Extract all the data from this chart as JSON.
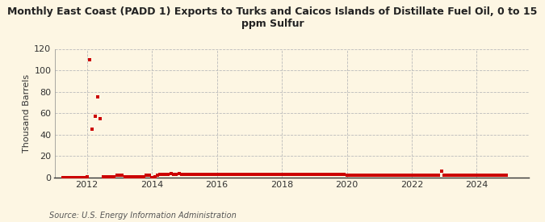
{
  "title": "Monthly East Coast (PADD 1) Exports to Turks and Caicos Islands of Distillate Fuel Oil, 0 to 15\nppm Sulfur",
  "ylabel": "Thousand Barrels",
  "source": "Source: U.S. Energy Information Administration",
  "background_color": "#fdf6e3",
  "plot_bg_color": "#fdf6e3",
  "marker_color": "#cc0000",
  "grid_color": "#bbbbbb",
  "ylim": [
    0,
    120
  ],
  "yticks": [
    0,
    20,
    40,
    60,
    80,
    100,
    120
  ],
  "xlim_start": 2011.0,
  "xlim_end": 2025.6,
  "xticks": [
    2012,
    2014,
    2016,
    2018,
    2020,
    2022,
    2024
  ],
  "data_points": [
    [
      2011.25,
      0
    ],
    [
      2011.33,
      0
    ],
    [
      2011.42,
      0
    ],
    [
      2011.5,
      0
    ],
    [
      2011.58,
      0
    ],
    [
      2011.67,
      0
    ],
    [
      2011.75,
      0
    ],
    [
      2011.83,
      0
    ],
    [
      2011.92,
      0
    ],
    [
      2012.0,
      1
    ],
    [
      2012.083,
      110
    ],
    [
      2012.167,
      45
    ],
    [
      2012.25,
      57
    ],
    [
      2012.333,
      75
    ],
    [
      2012.417,
      55
    ],
    [
      2012.5,
      1
    ],
    [
      2012.583,
      1
    ],
    [
      2012.667,
      1
    ],
    [
      2012.75,
      1
    ],
    [
      2012.833,
      1
    ],
    [
      2012.917,
      2
    ],
    [
      2013.0,
      2
    ],
    [
      2013.083,
      2
    ],
    [
      2013.167,
      1
    ],
    [
      2013.25,
      1
    ],
    [
      2013.333,
      1
    ],
    [
      2013.417,
      1
    ],
    [
      2013.5,
      1
    ],
    [
      2013.583,
      1
    ],
    [
      2013.667,
      1
    ],
    [
      2013.75,
      1
    ],
    [
      2013.833,
      2
    ],
    [
      2013.917,
      2
    ],
    [
      2014.0,
      0
    ],
    [
      2014.083,
      1
    ],
    [
      2014.167,
      2
    ],
    [
      2014.25,
      3
    ],
    [
      2014.333,
      3
    ],
    [
      2014.417,
      3
    ],
    [
      2014.5,
      3
    ],
    [
      2014.583,
      4
    ],
    [
      2014.667,
      3
    ],
    [
      2014.75,
      3
    ],
    [
      2014.833,
      4
    ],
    [
      2014.917,
      3
    ],
    [
      2015.0,
      3
    ],
    [
      2015.083,
      3
    ],
    [
      2015.167,
      3
    ],
    [
      2015.25,
      3
    ],
    [
      2015.333,
      3
    ],
    [
      2015.417,
      3
    ],
    [
      2015.5,
      3
    ],
    [
      2015.583,
      3
    ],
    [
      2015.667,
      3
    ],
    [
      2015.75,
      3
    ],
    [
      2015.833,
      3
    ],
    [
      2015.917,
      3
    ],
    [
      2016.0,
      3
    ],
    [
      2016.083,
      3
    ],
    [
      2016.167,
      3
    ],
    [
      2016.25,
      3
    ],
    [
      2016.333,
      3
    ],
    [
      2016.417,
      3
    ],
    [
      2016.5,
      3
    ],
    [
      2016.583,
      3
    ],
    [
      2016.667,
      3
    ],
    [
      2016.75,
      3
    ],
    [
      2016.833,
      3
    ],
    [
      2016.917,
      3
    ],
    [
      2017.0,
      3
    ],
    [
      2017.083,
      3
    ],
    [
      2017.167,
      3
    ],
    [
      2017.25,
      3
    ],
    [
      2017.333,
      3
    ],
    [
      2017.417,
      3
    ],
    [
      2017.5,
      3
    ],
    [
      2017.583,
      3
    ],
    [
      2017.667,
      3
    ],
    [
      2017.75,
      3
    ],
    [
      2017.833,
      3
    ],
    [
      2017.917,
      3
    ],
    [
      2018.0,
      3
    ],
    [
      2018.083,
      3
    ],
    [
      2018.167,
      3
    ],
    [
      2018.25,
      3
    ],
    [
      2018.333,
      3
    ],
    [
      2018.417,
      3
    ],
    [
      2018.5,
      3
    ],
    [
      2018.583,
      3
    ],
    [
      2018.667,
      3
    ],
    [
      2018.75,
      3
    ],
    [
      2018.833,
      3
    ],
    [
      2018.917,
      3
    ],
    [
      2019.0,
      3
    ],
    [
      2019.083,
      3
    ],
    [
      2019.167,
      3
    ],
    [
      2019.25,
      3
    ],
    [
      2019.333,
      3
    ],
    [
      2019.417,
      3
    ],
    [
      2019.5,
      3
    ],
    [
      2019.583,
      3
    ],
    [
      2019.667,
      3
    ],
    [
      2019.75,
      3
    ],
    [
      2019.833,
      3
    ],
    [
      2019.917,
      3
    ],
    [
      2020.0,
      2
    ],
    [
      2020.083,
      2
    ],
    [
      2020.167,
      2
    ],
    [
      2020.25,
      2
    ],
    [
      2020.333,
      2
    ],
    [
      2020.417,
      2
    ],
    [
      2020.5,
      2
    ],
    [
      2020.583,
      2
    ],
    [
      2020.667,
      2
    ],
    [
      2020.75,
      2
    ],
    [
      2020.833,
      2
    ],
    [
      2020.917,
      2
    ],
    [
      2021.0,
      2
    ],
    [
      2021.083,
      2
    ],
    [
      2021.167,
      2
    ],
    [
      2021.25,
      2
    ],
    [
      2021.333,
      2
    ],
    [
      2021.417,
      2
    ],
    [
      2021.5,
      2
    ],
    [
      2021.583,
      2
    ],
    [
      2021.667,
      2
    ],
    [
      2021.75,
      2
    ],
    [
      2021.833,
      2
    ],
    [
      2021.917,
      2
    ],
    [
      2022.0,
      2
    ],
    [
      2022.083,
      2
    ],
    [
      2022.167,
      2
    ],
    [
      2022.25,
      2
    ],
    [
      2022.333,
      2
    ],
    [
      2022.417,
      2
    ],
    [
      2022.5,
      2
    ],
    [
      2022.583,
      2
    ],
    [
      2022.667,
      2
    ],
    [
      2022.75,
      2
    ],
    [
      2022.833,
      2
    ],
    [
      2022.917,
      6
    ],
    [
      2023.0,
      2
    ],
    [
      2023.083,
      2
    ],
    [
      2023.167,
      2
    ],
    [
      2023.25,
      2
    ],
    [
      2023.333,
      2
    ],
    [
      2023.417,
      2
    ],
    [
      2023.5,
      2
    ],
    [
      2023.583,
      2
    ],
    [
      2023.667,
      2
    ],
    [
      2023.75,
      2
    ],
    [
      2023.833,
      2
    ],
    [
      2023.917,
      2
    ],
    [
      2024.0,
      2
    ],
    [
      2024.083,
      2
    ],
    [
      2024.167,
      2
    ],
    [
      2024.25,
      2
    ],
    [
      2024.333,
      2
    ],
    [
      2024.417,
      2
    ],
    [
      2024.5,
      2
    ],
    [
      2024.583,
      2
    ],
    [
      2024.667,
      2
    ],
    [
      2024.75,
      2
    ],
    [
      2024.833,
      2
    ],
    [
      2024.917,
      2
    ]
  ]
}
